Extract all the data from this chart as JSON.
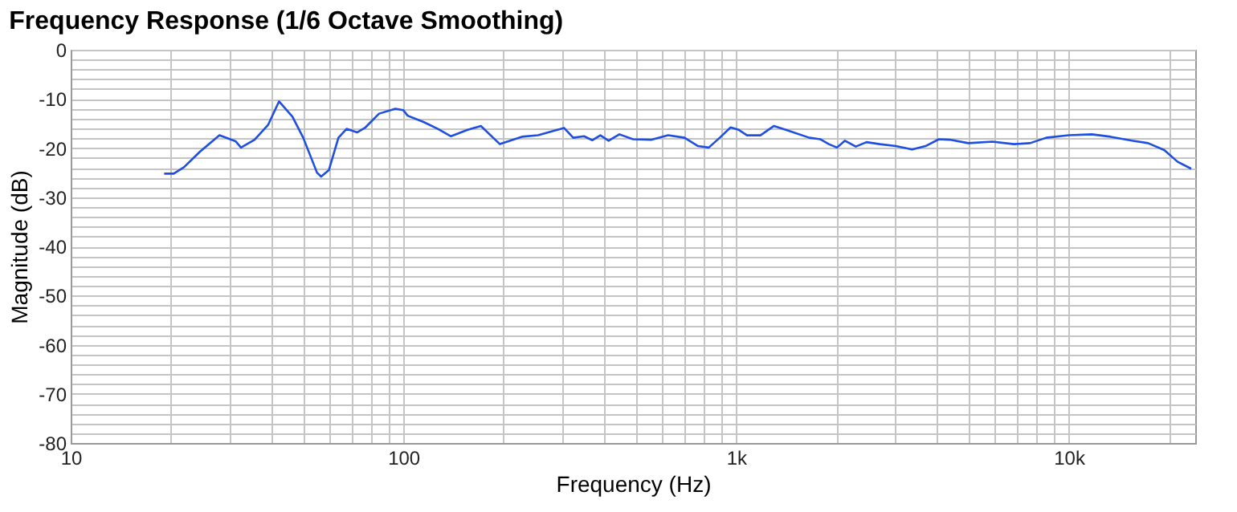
{
  "chart_data": {
    "type": "line",
    "title": "Frequency Response (1/6 Octave Smoothing)",
    "xlabel": "Frequency (Hz)",
    "ylabel": "Magnitude (dB)",
    "log": "x",
    "grid": true,
    "line_style": "solid",
    "xlim": [
      10,
      24000
    ],
    "ylim": [
      -80,
      0
    ],
    "xticks": [
      10,
      {
        "value": 20,
        "label": null
      },
      {
        "value": 30,
        "label": null
      },
      {
        "value": 40,
        "label": null
      },
      {
        "value": 50,
        "label": null
      },
      {
        "value": 60,
        "label": null
      },
      {
        "value": 70,
        "label": null
      },
      {
        "value": 80,
        "label": null
      },
      {
        "value": 90,
        "label": null
      },
      100,
      {
        "value": 200,
        "label": null
      },
      {
        "value": 300,
        "label": null
      },
      {
        "value": 400,
        "label": null
      },
      {
        "value": 500,
        "label": null
      },
      {
        "value": 600,
        "label": null
      },
      {
        "value": 700,
        "label": null
      },
      {
        "value": 800,
        "label": null
      },
      {
        "value": 900,
        "label": null
      },
      {
        "value": 1000,
        "label": "1k"
      },
      {
        "value": 2000,
        "label": null
      },
      {
        "value": 3000,
        "label": null
      },
      {
        "value": 4000,
        "label": null
      },
      {
        "value": 5000,
        "label": null
      },
      {
        "value": 6000,
        "label": null
      },
      {
        "value": 7000,
        "label": null
      },
      {
        "value": 8000,
        "label": null
      },
      {
        "value": 9000,
        "label": null
      },
      {
        "value": 10000,
        "label": "10k"
      },
      {
        "value": 20000,
        "label": null
      }
    ],
    "yticks": [
      -80,
      {
        "value": -78,
        "label": null
      },
      {
        "value": -76,
        "label": null
      },
      {
        "value": -74,
        "label": null
      },
      {
        "value": -72,
        "label": null
      },
      -70,
      {
        "value": -68,
        "label": null
      },
      {
        "value": -66,
        "label": null
      },
      {
        "value": -64,
        "label": null
      },
      {
        "value": -62,
        "label": null
      },
      -60,
      {
        "value": -58,
        "label": null
      },
      {
        "value": -56,
        "label": null
      },
      {
        "value": -54,
        "label": null
      },
      {
        "value": -52,
        "label": null
      },
      -50,
      {
        "value": -48,
        "label": null
      },
      {
        "value": -46,
        "label": null
      },
      {
        "value": -44,
        "label": null
      },
      {
        "value": -42,
        "label": null
      },
      -40,
      {
        "value": -38,
        "label": null
      },
      {
        "value": -36,
        "label": null
      },
      {
        "value": -34,
        "label": null
      },
      {
        "value": -32,
        "label": null
      },
      -30,
      {
        "value": -28,
        "label": null
      },
      {
        "value": -26,
        "label": null
      },
      {
        "value": -24,
        "label": null
      },
      {
        "value": -22,
        "label": null
      },
      -20,
      {
        "value": -18,
        "label": null
      },
      {
        "value": -16,
        "label": null
      },
      {
        "value": -14,
        "label": null
      },
      {
        "value": -12,
        "label": null
      },
      -10,
      {
        "value": -8,
        "label": null
      },
      {
        "value": -6,
        "label": null
      },
      {
        "value": -4,
        "label": null
      },
      {
        "value": -2,
        "label": null
      },
      0
    ],
    "series": [
      {
        "color": "#1f4fe0",
        "x": [
          19.1,
          20.4,
          21.9,
          24.5,
          28.0,
          31.3,
          32.5,
          35.7,
          39.2,
          42.3,
          46.4,
          50.0,
          55.0,
          56.6,
          59.7,
          63.8,
          67.5,
          72.7,
          76.9,
          84.5,
          94.6,
          100,
          103,
          115,
          127,
          139,
          156,
          171,
          195,
          227,
          254,
          279,
          304,
          324,
          349,
          370,
          391,
          414,
          446,
          490,
          558,
          625,
          700,
          769,
          828,
          893,
          963,
          1019,
          1079,
          1184,
          1300,
          1429,
          1660,
          1790,
          1901,
          2011,
          2125,
          2290,
          2467,
          2706,
          3024,
          3383,
          3710,
          4070,
          4386,
          4991,
          5897,
          6844,
          7649,
          8556,
          10000,
          11730,
          13360,
          15490,
          17320,
          19370,
          21250,
          23340
        ],
        "values": [
          -25.2,
          -25.2,
          -23.9,
          -20.7,
          -17.4,
          -18.6,
          -19.9,
          -18.3,
          -15.3,
          -10.5,
          -13.6,
          -17.9,
          -25.0,
          -25.8,
          -24.5,
          -17.9,
          -16.1,
          -16.8,
          -15.8,
          -13.0,
          -12.0,
          -12.3,
          -13.4,
          -14.7,
          -16.1,
          -17.6,
          -16.3,
          -15.5,
          -19.2,
          -17.7,
          -17.4,
          -16.6,
          -15.9,
          -17.9,
          -17.6,
          -18.4,
          -17.4,
          -18.5,
          -17.2,
          -18.2,
          -18.3,
          -17.4,
          -17.9,
          -19.6,
          -19.9,
          -17.9,
          -15.8,
          -16.3,
          -17.4,
          -17.4,
          -15.5,
          -16.4,
          -17.9,
          -18.2,
          -19.2,
          -19.9,
          -18.5,
          -19.7,
          -18.8,
          -19.2,
          -19.6,
          -20.3,
          -19.6,
          -18.2,
          -18.3,
          -19.0,
          -18.7,
          -19.2,
          -19.0,
          -17.9,
          -17.4,
          -17.2,
          -17.7,
          -18.5,
          -19.0,
          -20.4,
          -22.8,
          -24.2
        ]
      }
    ]
  }
}
